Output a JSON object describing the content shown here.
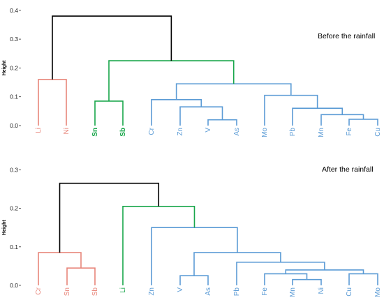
{
  "colors": {
    "red": "#E8857A",
    "green": "#18A64A",
    "blue": "#5B9BD5",
    "black": "#000000"
  },
  "chart_data": [
    {
      "type": "dendrogram",
      "title": "Before the rainfall",
      "ylabel": "Height",
      "ylim": [
        0,
        0.4
      ],
      "yticks": [
        "0.0",
        "0.1",
        "0.2",
        "0.3",
        "0.4"
      ],
      "leaves": [
        {
          "label": "Li",
          "color": "red",
          "bold": false
        },
        {
          "label": "Ni",
          "color": "red",
          "bold": false
        },
        {
          "label": "Sn",
          "color": "green",
          "bold": true
        },
        {
          "label": "Sb",
          "color": "green",
          "bold": true
        },
        {
          "label": "Cr",
          "color": "blue",
          "bold": false
        },
        {
          "label": "Zn",
          "color": "blue",
          "bold": false
        },
        {
          "label": "V",
          "color": "blue",
          "bold": false
        },
        {
          "label": "As",
          "color": "blue",
          "bold": false
        },
        {
          "label": "Mo",
          "color": "blue",
          "bold": false
        },
        {
          "label": "Pb",
          "color": "blue",
          "bold": false
        },
        {
          "label": "Mn",
          "color": "blue",
          "bold": false
        },
        {
          "label": "Fe",
          "color": "blue",
          "bold": false
        },
        {
          "label": "Cu",
          "color": "blue",
          "bold": false
        }
      ],
      "merges": [
        {
          "left": "Li",
          "right": "Ni",
          "height": 0.16,
          "color": "red"
        },
        {
          "left": "Sn",
          "right": "Sb",
          "height": 0.085,
          "color": "green"
        },
        {
          "left": "V",
          "right": "As",
          "height": 0.02,
          "color": "blue"
        },
        {
          "left": "Zn",
          "right": "V,As",
          "height": 0.065,
          "color": "blue"
        },
        {
          "left": "Cr",
          "right": "Zn,V,As",
          "height": 0.09,
          "color": "blue"
        },
        {
          "left": "Fe",
          "right": "Cu",
          "height": 0.022,
          "color": "blue"
        },
        {
          "left": "Mn",
          "right": "Fe,Cu",
          "height": 0.038,
          "color": "blue"
        },
        {
          "left": "Pb",
          "right": "Mn,Fe,Cu",
          "height": 0.06,
          "color": "blue"
        },
        {
          "left": "Mo",
          "right": "Pb,Mn,Fe,Cu",
          "height": 0.105,
          "color": "blue"
        },
        {
          "left": "Cr..As",
          "right": "Mo..Cu",
          "height": 0.145,
          "color": "blue"
        },
        {
          "left": "Sn,Sb",
          "right": "Cr..Cu",
          "height": 0.225,
          "color": "green"
        },
        {
          "left": "Li,Ni",
          "right": "Sn..Cu",
          "height": 0.38,
          "color": "black"
        }
      ]
    },
    {
      "type": "dendrogram",
      "title": "After the rainfall",
      "ylabel": "Height",
      "ylim": [
        0,
        0.3
      ],
      "yticks": [
        "0.0",
        "0.1",
        "0.2",
        "0.3"
      ],
      "leaves": [
        {
          "label": "Cr",
          "color": "red",
          "bold": false
        },
        {
          "label": "Sn",
          "color": "red",
          "bold": false
        },
        {
          "label": "Sb",
          "color": "red",
          "bold": false
        },
        {
          "label": "Li",
          "color": "green",
          "bold": false
        },
        {
          "label": "Zn",
          "color": "blue",
          "bold": false
        },
        {
          "label": "V",
          "color": "blue",
          "bold": false
        },
        {
          "label": "As",
          "color": "blue",
          "bold": false
        },
        {
          "label": "Pb",
          "color": "blue",
          "bold": false
        },
        {
          "label": "Fe",
          "color": "blue",
          "bold": false
        },
        {
          "label": "Mn",
          "color": "blue",
          "bold": false
        },
        {
          "label": "Ni",
          "color": "blue",
          "bold": false
        },
        {
          "label": "Cu",
          "color": "blue",
          "bold": false
        },
        {
          "label": "Mo",
          "color": "blue",
          "bold": false
        }
      ],
      "merges": [
        {
          "left": "Sn",
          "right": "Sb",
          "height": 0.045,
          "color": "red"
        },
        {
          "left": "Cr",
          "right": "Sn,Sb",
          "height": 0.085,
          "color": "red"
        },
        {
          "left": "V",
          "right": "As",
          "height": 0.025,
          "color": "blue"
        },
        {
          "left": "Mn",
          "right": "Ni",
          "height": 0.015,
          "color": "blue"
        },
        {
          "left": "Fe",
          "right": "Mn,Ni",
          "height": 0.03,
          "color": "blue"
        },
        {
          "left": "Cu",
          "right": "Mo",
          "height": 0.03,
          "color": "blue"
        },
        {
          "left": "Fe,Mn,Ni",
          "right": "Cu,Mo",
          "height": 0.04,
          "color": "blue"
        },
        {
          "left": "Pb",
          "right": "Fe..Mo",
          "height": 0.06,
          "color": "blue"
        },
        {
          "left": "V,As",
          "right": "Pb..Mo",
          "height": 0.085,
          "color": "blue"
        },
        {
          "left": "Zn",
          "right": "V..Mo",
          "height": 0.15,
          "color": "blue"
        },
        {
          "left": "Li",
          "right": "Zn..Mo",
          "height": 0.205,
          "color": "green"
        },
        {
          "left": "Cr,Sn,Sb",
          "right": "Li..Mo",
          "height": 0.265,
          "color": "black"
        }
      ]
    }
  ]
}
